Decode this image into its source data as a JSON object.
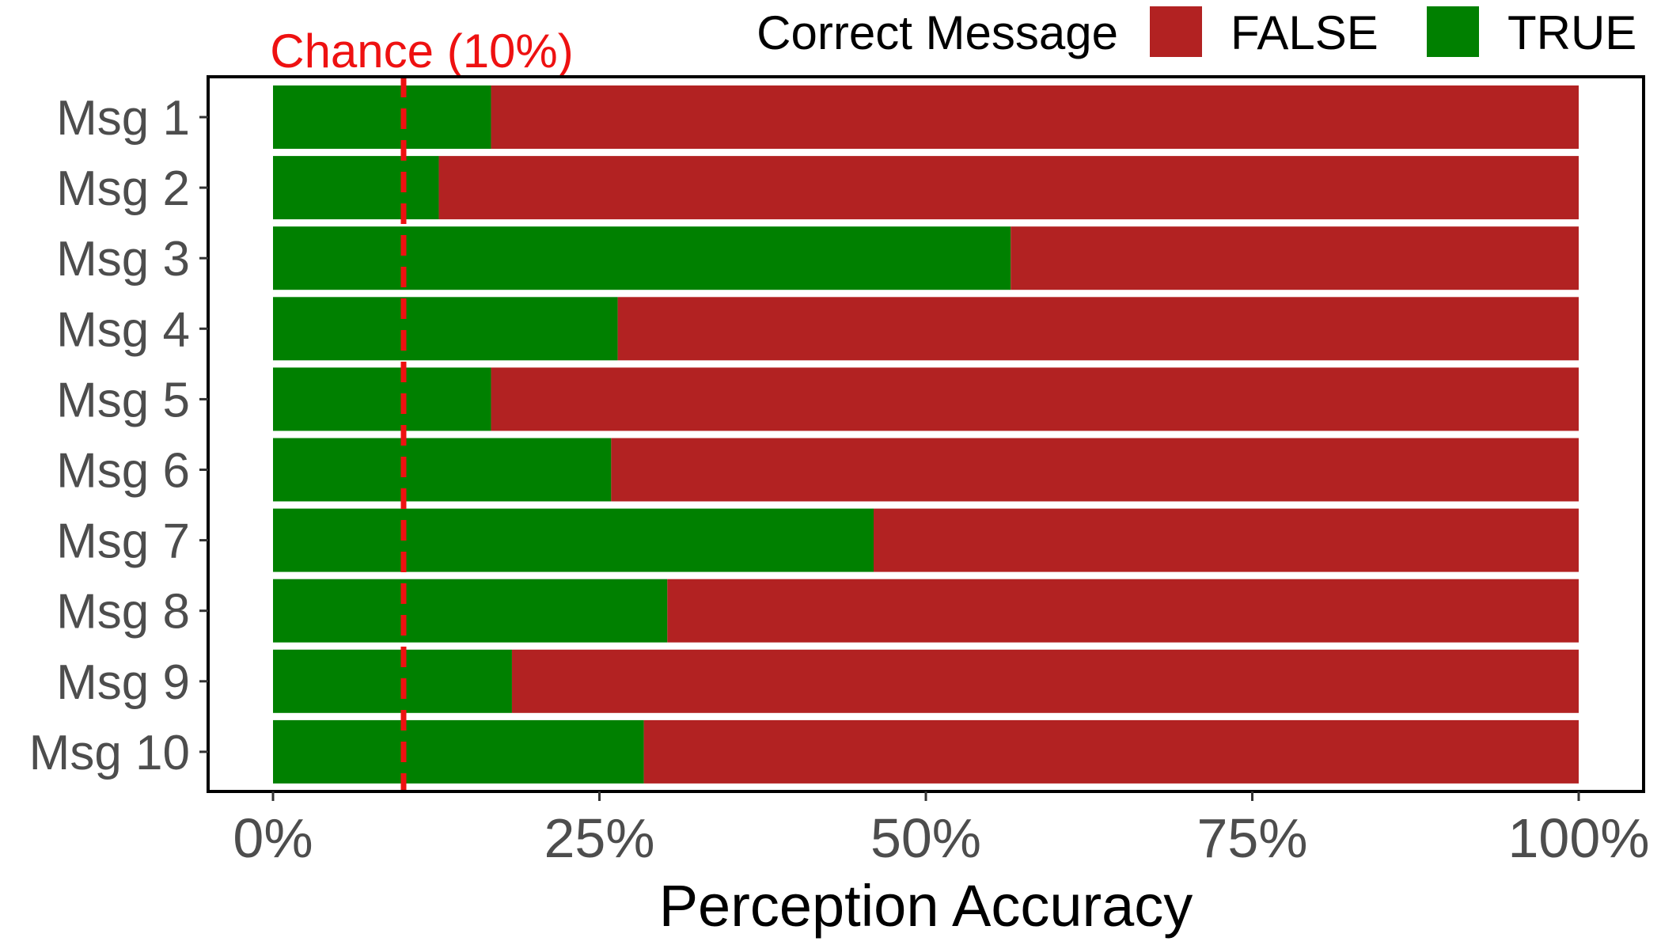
{
  "chart_data": {
    "type": "bar",
    "orientation": "horizontal",
    "stacked": true,
    "categories": [
      "Msg 1",
      "Msg 2",
      "Msg 3",
      "Msg 4",
      "Msg 5",
      "Msg 6",
      "Msg 7",
      "Msg 8",
      "Msg 9",
      "Msg 10"
    ],
    "series": [
      {
        "name": "TRUE",
        "color": "#008000",
        "values": [
          16.7,
          12.7,
          56.5,
          26.4,
          16.7,
          25.9,
          46.0,
          30.2,
          18.3,
          28.4
        ]
      },
      {
        "name": "FALSE",
        "color": "#b22222",
        "values": [
          83.3,
          87.3,
          43.5,
          73.6,
          83.3,
          74.1,
          54.0,
          69.8,
          81.7,
          71.6
        ]
      }
    ],
    "xlabel": "Perception Accuracy",
    "ylabel": "",
    "xlim": [
      0,
      100
    ],
    "x_ticks": [
      0,
      25,
      50,
      75,
      100
    ],
    "x_tick_labels": [
      "0%",
      "25%",
      "50%",
      "75%",
      "100%"
    ],
    "grid": false,
    "legend": {
      "title": "Correct Message",
      "position": "top-right",
      "entries": [
        {
          "name": "FALSE",
          "color": "#b22222"
        },
        {
          "name": "TRUE",
          "color": "#008000"
        }
      ]
    },
    "reference_line": {
      "value": 10,
      "label": "Chance (10%)",
      "color": "#ee1111",
      "style": "dashed"
    }
  }
}
